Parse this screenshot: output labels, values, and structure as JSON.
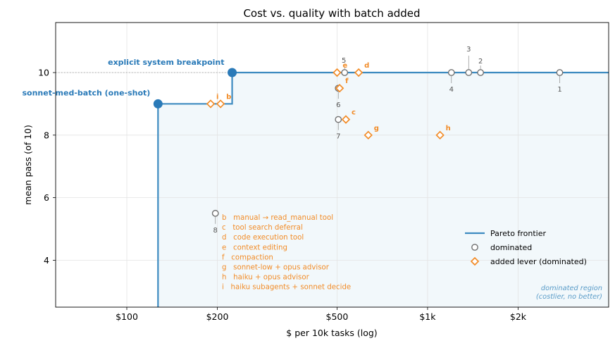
{
  "chart_data": {
    "type": "scatter",
    "title": "Cost vs. quality with batch added",
    "xlabel": "$ per 10k tasks (log)",
    "ylabel": "mean pass (of 10)",
    "x_scale": "log",
    "xlim": [
      58,
      4000
    ],
    "ylim": [
      2.5,
      11.6
    ],
    "x_ticks": [
      {
        "value": 100,
        "label": "$100"
      },
      {
        "value": 200,
        "label": "$200"
      },
      {
        "value": 500,
        "label": "$500"
      },
      {
        "value": 1000,
        "label": "$1k"
      },
      {
        "value": 2000,
        "label": "$2k"
      }
    ],
    "y_ticks": [
      {
        "value": 4,
        "label": "4"
      },
      {
        "value": 6,
        "label": "6"
      },
      {
        "value": 8,
        "label": "8"
      },
      {
        "value": 10,
        "label": "10"
      }
    ],
    "grid": true,
    "colors": {
      "frontier": "#2a7ab8",
      "lever": "#f28c28",
      "dominated": "#808080",
      "region_fill": "#f2f8fb"
    },
    "frontier": {
      "name": "Pareto frontier",
      "points": [
        {
          "x": 127,
          "y": 9.0,
          "label": "sonnet-med-batch (one-shot)"
        },
        {
          "x": 224,
          "y": 10.0,
          "label": "explicit system breakpoint"
        }
      ]
    },
    "dominated": {
      "name": "dominated",
      "points": [
        {
          "x": 2750,
          "y": 10.0,
          "label": "1"
        },
        {
          "x": 1500,
          "y": 10.0,
          "label": "2"
        },
        {
          "x": 1370,
          "y": 10.0,
          "label": "3"
        },
        {
          "x": 1200,
          "y": 10.0,
          "label": "4"
        },
        {
          "x": 530,
          "y": 10.0,
          "label": "5"
        },
        {
          "x": 505,
          "y": 9.5,
          "label": "6"
        },
        {
          "x": 505,
          "y": 8.5,
          "label": "7"
        },
        {
          "x": 197,
          "y": 5.5,
          "label": "8"
        }
      ]
    },
    "levers": {
      "name": "added lever (dominated)",
      "points": [
        {
          "x": 205,
          "y": 9.0,
          "label": "b"
        },
        {
          "x": 535,
          "y": 8.5,
          "label": "c"
        },
        {
          "x": 590,
          "y": 10.0,
          "label": "d"
        },
        {
          "x": 500,
          "y": 10.0,
          "label": "e"
        },
        {
          "x": 510,
          "y": 9.5,
          "label": "f"
        },
        {
          "x": 635,
          "y": 8.0,
          "label": "g"
        },
        {
          "x": 1100,
          "y": 8.0,
          "label": "h"
        },
        {
          "x": 190,
          "y": 9.0,
          "label": "i"
        }
      ]
    },
    "lever_key": [
      "b   manual → read_manual tool",
      "c   tool search deferral",
      "d   code execution tool",
      "e   context editing",
      "f   compaction",
      "g   sonnet-low + opus advisor",
      "h   haiku + opus advisor",
      "i   haiku subagents + sonnet decide"
    ],
    "region_note": [
      "dominated region",
      "(costlier, no better)"
    ],
    "legend": {
      "position": "lower-right",
      "entries": [
        "Pareto frontier",
        "dominated",
        "added lever (dominated)"
      ]
    }
  }
}
